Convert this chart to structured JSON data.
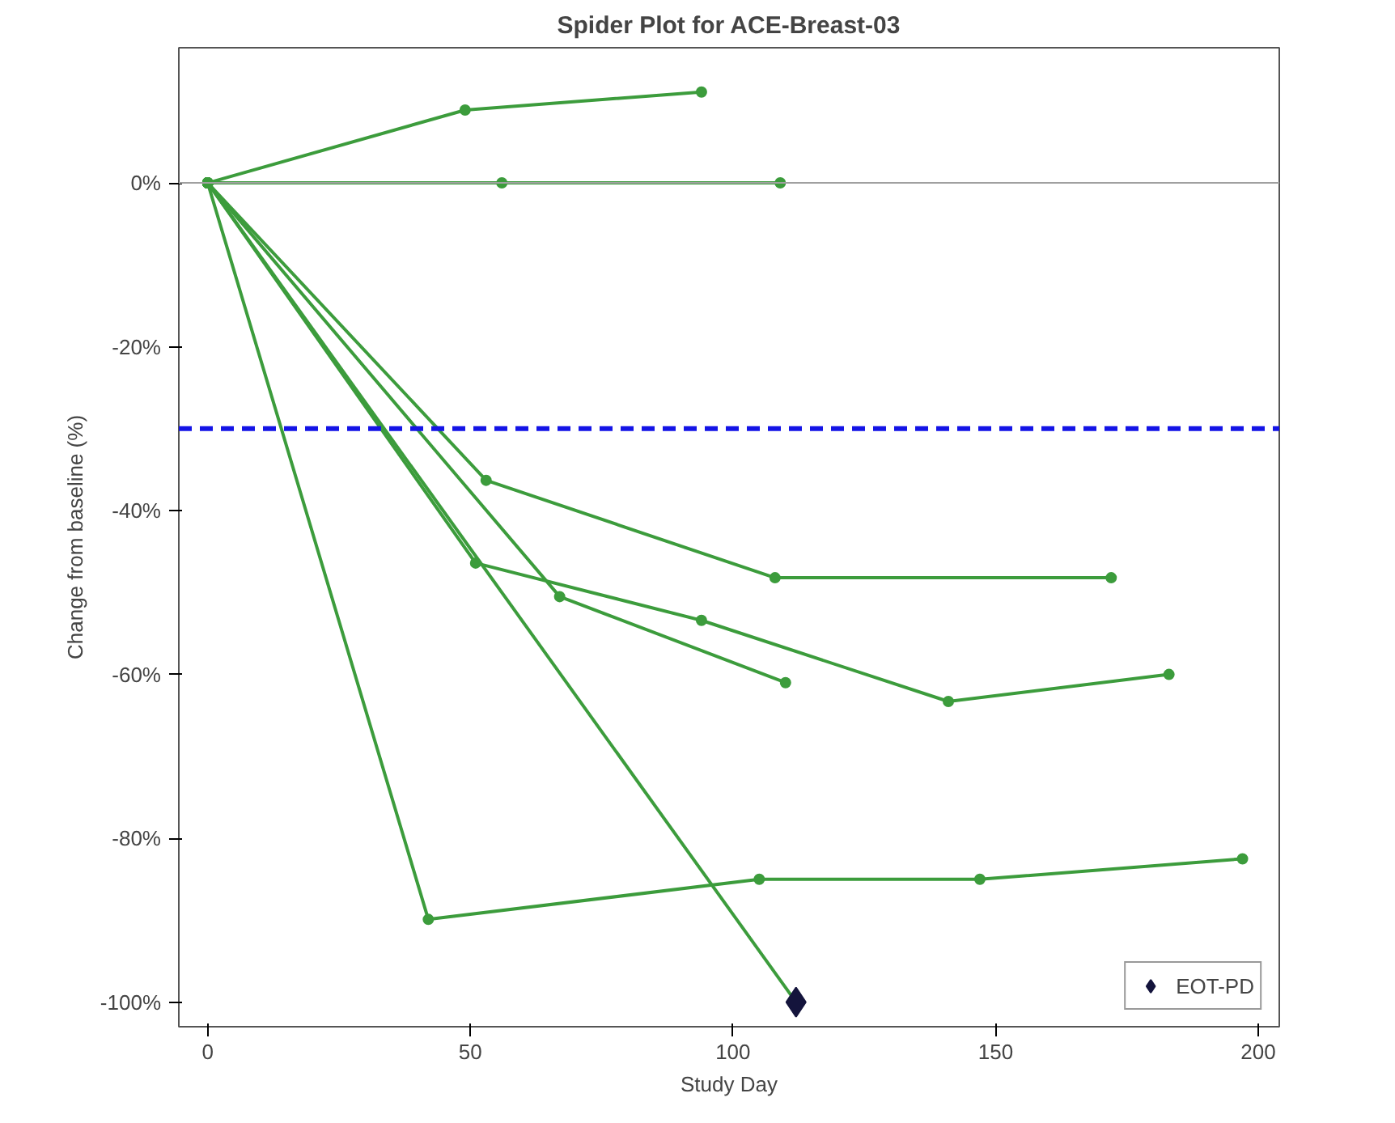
{
  "chart_data": {
    "type": "line",
    "title": "Spider Plot for ACE-Breast-03",
    "xlabel": "Study Day",
    "ylabel": "Change from baseline (%)",
    "xlim": [
      -5.5,
      204
    ],
    "ylim": [
      -103,
      16.5
    ],
    "xticks": [
      0,
      50,
      100,
      150,
      200
    ],
    "yticks": [
      {
        "value": 0,
        "label": "0%"
      },
      {
        "value": -20,
        "label": "-20%"
      },
      {
        "value": -40,
        "label": "-40%"
      },
      {
        "value": -60,
        "label": "-60%"
      },
      {
        "value": -80,
        "label": "-80%"
      },
      {
        "value": -100,
        "label": "-100%"
      }
    ],
    "grid": false,
    "legend": "bottom right",
    "marker": "circle",
    "line_style": "solid",
    "ref_lines": [
      {
        "axis": "y",
        "value": 0,
        "label": null,
        "color": "#a0a0a0",
        "line_style": "solid"
      },
      {
        "axis": "y",
        "value": -30,
        "label": null,
        "color": "#1414e6",
        "line_style": "dashed"
      }
    ],
    "series": [
      {
        "color": "#3c9c3c",
        "x": [
          0,
          49,
          94
        ],
        "values": [
          0,
          8.9,
          11.1
        ]
      },
      {
        "color": "#3c9c3c",
        "x": [
          0,
          56,
          109
        ],
        "values": [
          0,
          0,
          0
        ]
      },
      {
        "color": "#3c9c3c",
        "x": [
          0,
          53,
          108,
          172
        ],
        "values": [
          0,
          -36.3,
          -48.2,
          -48.2
        ]
      },
      {
        "color": "#3c9c3c",
        "x": [
          0,
          51,
          94,
          141,
          183
        ],
        "values": [
          0,
          -46.4,
          -53.4,
          -63.3,
          -60
        ]
      },
      {
        "color": "#3c9c3c",
        "x": [
          0,
          67,
          110
        ],
        "values": [
          0,
          -50.5,
          -61
        ]
      },
      {
        "color": "#3c9c3c",
        "x": [
          0,
          42,
          105,
          147,
          197
        ],
        "values": [
          0,
          -89.9,
          -85,
          -85,
          -82.5
        ]
      },
      {
        "color": "#3c9c3c",
        "x": [
          0,
          112
        ],
        "values": [
          0,
          -100
        ]
      },
      {
        "type": "scatter",
        "name": "EOT-PD",
        "marker": "diamond",
        "color": "#14143c",
        "x": [
          112
        ],
        "values": [
          -100
        ]
      }
    ]
  }
}
